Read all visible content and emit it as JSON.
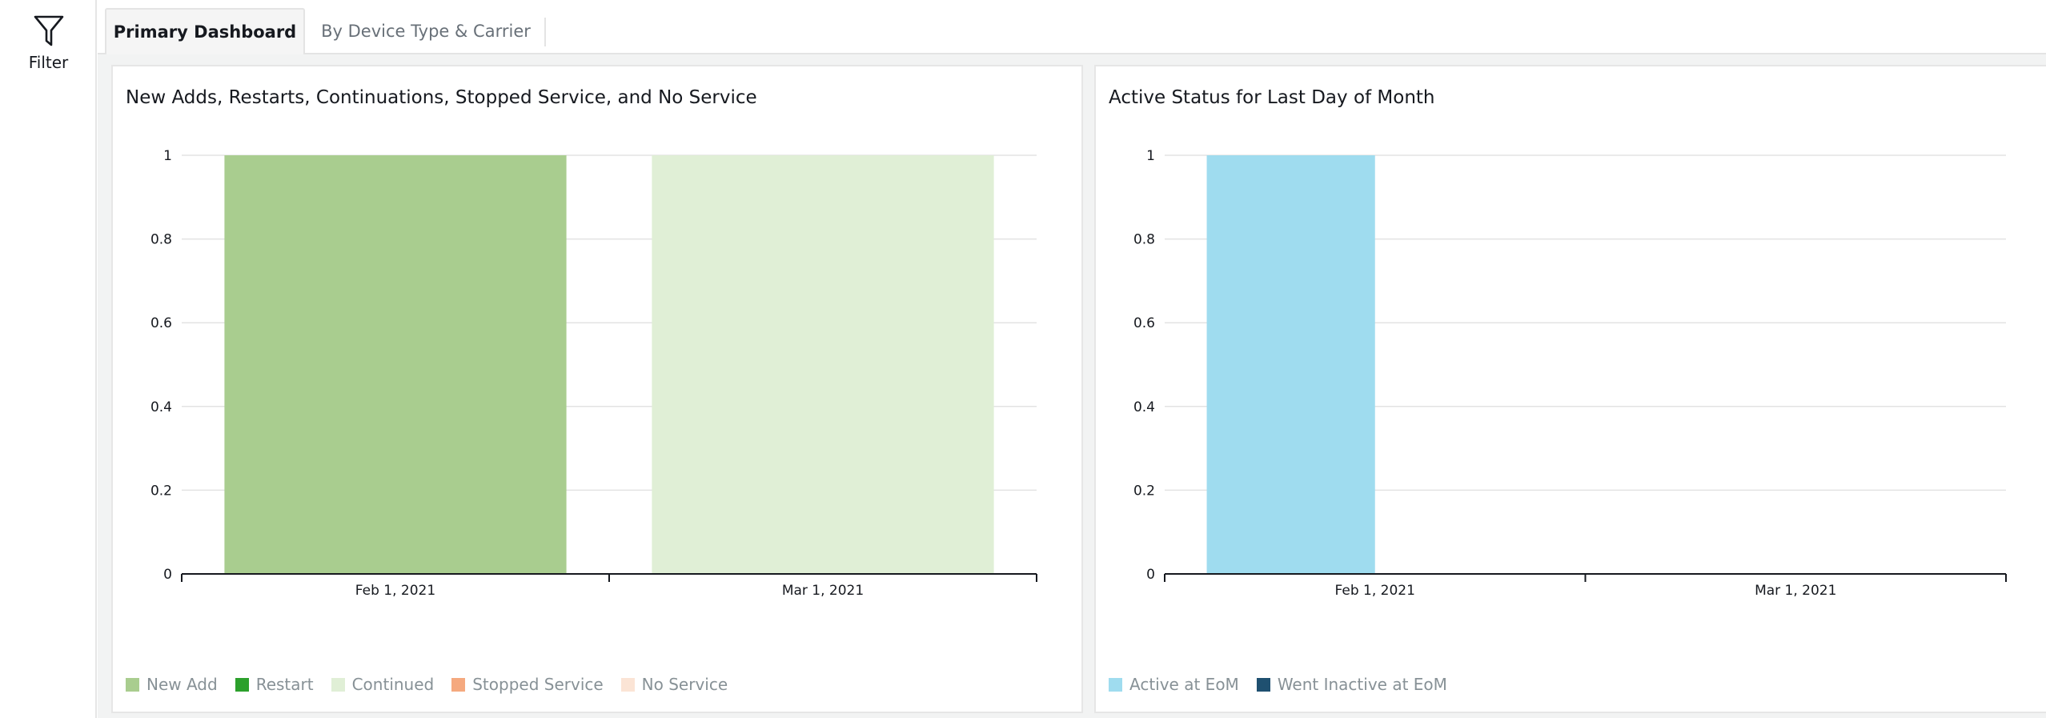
{
  "sidebar": {
    "filter_label": "Filter",
    "filter_icon": "funnel-icon"
  },
  "tabs": [
    {
      "label": "Primary Dashboard",
      "active": true
    },
    {
      "label": "By Device Type & Carrier",
      "active": false
    }
  ],
  "charts": [
    {
      "title": "New Adds, Restarts, Continuations, Stopped Service, and No Service",
      "legend": [
        {
          "label": "New Add",
          "color": "#a9cd8f"
        },
        {
          "label": "Restart",
          "color": "#2ca02c"
        },
        {
          "label": "Continued",
          "color": "#e0efd6"
        },
        {
          "label": "Stopped Service",
          "color": "#f5a97f"
        },
        {
          "label": "No Service",
          "color": "#fbe4d5"
        }
      ]
    },
    {
      "title": "Active Status for Last Day of Month",
      "legend": [
        {
          "label": "Active at EoM",
          "color": "#9fdcef"
        },
        {
          "label": "Went Inactive at EoM",
          "color": "#1f5070"
        }
      ]
    }
  ],
  "chart_data": [
    {
      "type": "bar",
      "stacked": true,
      "title": "New Adds, Restarts, Continuations, Stopped Service, and No Service",
      "categories": [
        "Feb 1, 2021",
        "Mar 1, 2021"
      ],
      "series": [
        {
          "name": "New Add",
          "values": [
            1,
            0
          ],
          "color": "#a9cd8f"
        },
        {
          "name": "Restart",
          "values": [
            0,
            0
          ],
          "color": "#2ca02c"
        },
        {
          "name": "Continued",
          "values": [
            0,
            1
          ],
          "color": "#e0efd6"
        },
        {
          "name": "Stopped Service",
          "values": [
            0,
            0
          ],
          "color": "#f5a97f"
        },
        {
          "name": "No Service",
          "values": [
            0,
            0
          ],
          "color": "#fbe4d5"
        }
      ],
      "ylim": [
        0,
        1
      ],
      "yticks": [
        "0",
        "0.2",
        "0.4",
        "0.6",
        "0.8",
        "1"
      ],
      "grid": true,
      "legend_position": "bottom-left"
    },
    {
      "type": "bar",
      "stacked": true,
      "title": "Active Status for Last Day of Month",
      "categories": [
        "Feb 1, 2021",
        "Mar 1, 2021"
      ],
      "series": [
        {
          "name": "Active at EoM",
          "values": [
            1,
            0
          ],
          "color": "#9fdcef"
        },
        {
          "name": "Went Inactive at EoM",
          "values": [
            0,
            0
          ],
          "color": "#1f5070"
        }
      ],
      "ylim": [
        0,
        1
      ],
      "yticks": [
        "0",
        "0.2",
        "0.4",
        "0.6",
        "0.8",
        "1"
      ],
      "grid": true,
      "legend_position": "bottom-left"
    }
  ]
}
